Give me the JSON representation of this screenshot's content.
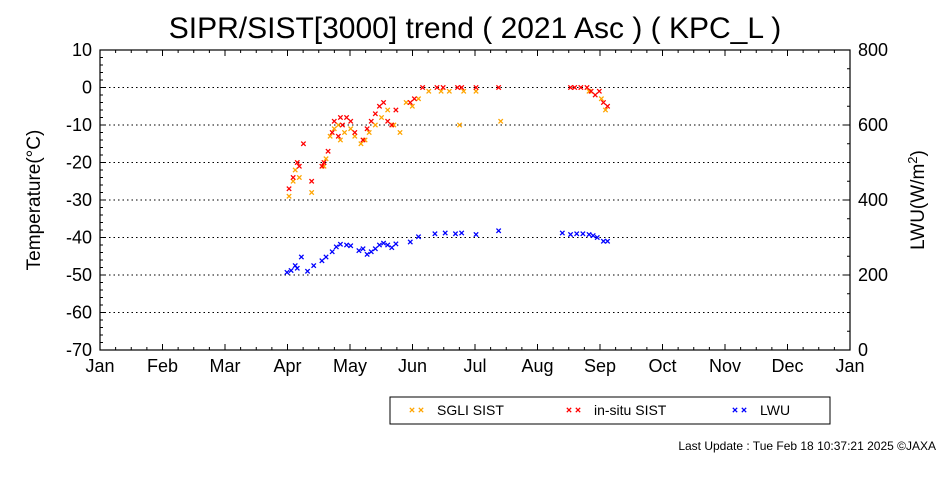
{
  "chart_data": {
    "type": "scatter",
    "title": "SIPR/SIST[3000] trend ( 2021 Asc ) ( KPC_L )",
    "ylabel": "Temperature(°C)",
    "y2label_main": "LWU(W/m",
    "y2label_sup": "2",
    "y2label_tail": ")",
    "xlabel": "",
    "x_ticks": [
      "Jan",
      "Feb",
      "Mar",
      "Apr",
      "May",
      "Jun",
      "Jul",
      "Aug",
      "Sep",
      "Oct",
      "Nov",
      "Dec",
      "Jan"
    ],
    "ylim": [
      -70,
      10
    ],
    "y_ticks": [
      10,
      0,
      -10,
      -20,
      -30,
      -40,
      -50,
      -60,
      -70
    ],
    "y2lim": [
      0,
      800
    ],
    "y2_ticks": [
      800,
      600,
      400,
      200,
      0
    ],
    "grid": "dotted horizontal",
    "legend_position": "bottom",
    "series": [
      {
        "name": "SGLI SIST",
        "axis": "left",
        "color": "#ffa500",
        "x": [
          "2021-04-03",
          "2021-04-05",
          "2021-04-06",
          "2021-04-08",
          "2021-04-14",
          "2021-04-20",
          "2021-04-21",
          "2021-04-23",
          "2021-04-25",
          "2021-04-27",
          "2021-04-28",
          "2021-04-30",
          "2021-05-03",
          "2021-05-05",
          "2021-05-08",
          "2021-05-10",
          "2021-05-12",
          "2021-05-15",
          "2021-05-18",
          "2021-05-21",
          "2021-05-24",
          "2021-05-27",
          "2021-05-30",
          "2021-06-02",
          "2021-06-05",
          "2021-06-10",
          "2021-06-16",
          "2021-06-20",
          "2021-06-25",
          "2021-06-27",
          "2021-07-03",
          "2021-07-15",
          "2021-08-27",
          "2021-09-02",
          "2021-09-04"
        ],
        "y": [
          -29,
          -25,
          -22,
          -24,
          -28,
          -21,
          -19,
          -13,
          -11,
          -10,
          -14,
          -12,
          -11,
          -13,
          -15,
          -14,
          -12,
          -10,
          -8,
          -6,
          -10,
          -12,
          -4,
          -5,
          -3,
          -1,
          -1,
          -1,
          -10,
          -1,
          -1,
          -9,
          -1,
          -3,
          -6
        ]
      },
      {
        "name": "in-situ SIST",
        "axis": "left",
        "color": "#ff0000",
        "x": [
          "2021-04-03",
          "2021-04-05",
          "2021-04-07",
          "2021-04-08",
          "2021-04-10",
          "2021-04-14",
          "2021-04-19",
          "2021-04-20",
          "2021-04-22",
          "2021-04-24",
          "2021-04-25",
          "2021-04-27",
          "2021-04-28",
          "2021-04-29",
          "2021-05-01",
          "2021-05-03",
          "2021-05-05",
          "2021-05-09",
          "2021-05-11",
          "2021-05-13",
          "2021-05-15",
          "2021-05-17",
          "2021-05-19",
          "2021-05-21",
          "2021-05-23",
          "2021-05-25",
          "2021-06-01",
          "2021-06-03",
          "2021-06-07",
          "2021-06-14",
          "2021-06-17",
          "2021-06-24",
          "2021-06-26",
          "2021-07-03",
          "2021-07-14",
          "2021-08-18",
          "2021-08-20",
          "2021-08-23",
          "2021-08-26",
          "2021-08-28",
          "2021-08-30",
          "2021-09-01",
          "2021-09-03",
          "2021-09-05"
        ],
        "y": [
          -27,
          -24,
          -20,
          -21,
          -15,
          -25,
          -21,
          -20,
          -17,
          -12,
          -9,
          -13,
          -8,
          -10,
          -8,
          -9,
          -12,
          -14,
          -11,
          -9,
          -7,
          -5,
          -4,
          -9,
          -10,
          -6,
          -4,
          -3,
          0,
          0,
          0,
          0,
          0,
          0,
          0,
          0,
          0,
          0,
          0,
          -1,
          -2,
          -1,
          -4,
          -5
        ]
      },
      {
        "name": "LWU",
        "axis": "right",
        "color": "#0000ff",
        "x": [
          "2021-04-02",
          "2021-04-04",
          "2021-04-06",
          "2021-04-07",
          "2021-04-09",
          "2021-04-12",
          "2021-04-15",
          "2021-04-19",
          "2021-04-21",
          "2021-04-24",
          "2021-04-26",
          "2021-04-28",
          "2021-05-01",
          "2021-05-03",
          "2021-05-07",
          "2021-05-09",
          "2021-05-11",
          "2021-05-13",
          "2021-05-15",
          "2021-05-17",
          "2021-05-19",
          "2021-05-21",
          "2021-05-23",
          "2021-05-25",
          "2021-06-01",
          "2021-06-05",
          "2021-06-13",
          "2021-06-18",
          "2021-06-23",
          "2021-06-26",
          "2021-07-03",
          "2021-07-14",
          "2021-08-14",
          "2021-08-18",
          "2021-08-21",
          "2021-08-24",
          "2021-08-27",
          "2021-08-29",
          "2021-08-31",
          "2021-09-03",
          "2021-09-05"
        ],
        "y": [
          207,
          212,
          225,
          218,
          248,
          210,
          225,
          238,
          248,
          262,
          275,
          282,
          280,
          278,
          265,
          270,
          255,
          262,
          270,
          280,
          285,
          280,
          273,
          283,
          288,
          302,
          310,
          312,
          310,
          312,
          308,
          318,
          312,
          308,
          310,
          310,
          308,
          305,
          300,
          290,
          290
        ]
      }
    ],
    "legend": [
      "SGLI SIST",
      "in-situ SIST",
      "LWU"
    ],
    "footer": "Last Update : Tue Feb 18 10:37:21 2025  ©JAXA"
  }
}
